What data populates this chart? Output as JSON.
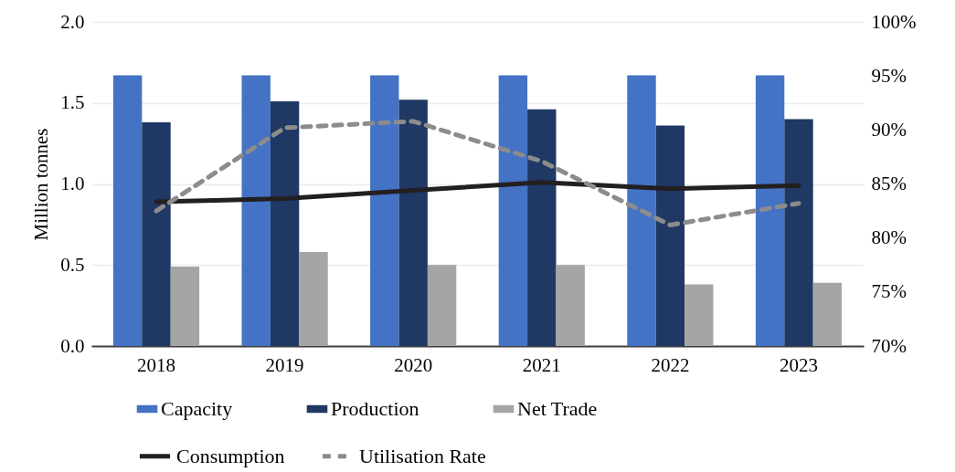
{
  "chart_data": {
    "type": "bar",
    "ylabel": "Million tonnes",
    "categories": [
      "2018",
      "2019",
      "2020",
      "2021",
      "2022",
      "2023"
    ],
    "series": [
      {
        "name": "Capacity",
        "color": "#4472c4",
        "values": [
          1.67,
          1.67,
          1.67,
          1.67,
          1.67,
          1.67
        ]
      },
      {
        "name": "Production",
        "color": "#1f3864",
        "values": [
          1.38,
          1.51,
          1.52,
          1.46,
          1.36,
          1.4
        ]
      },
      {
        "name": "Net Trade",
        "color": "#a5a5a5",
        "values": [
          0.49,
          0.58,
          0.5,
          0.5,
          0.38,
          0.39
        ]
      },
      {
        "name": "Consumption",
        "type": "line",
        "color": "#231f20",
        "line_style": "solid",
        "values": [
          0.89,
          0.91,
          0.96,
          1.01,
          0.97,
          0.99
        ]
      },
      {
        "name": "Utilisation Rate",
        "type": "line",
        "axis": "y2",
        "color": "#8c8c8c",
        "line_style": "dashed",
        "values": [
          82.5,
          90.2,
          90.8,
          87.1,
          81.2,
          83.2
        ]
      }
    ],
    "ylim": [
      0,
      2
    ],
    "yticks": [
      {
        "value": 0,
        "label": "0.0"
      },
      {
        "value": 0.5,
        "label": "0.5"
      },
      {
        "value": 1,
        "label": "1.0"
      },
      {
        "value": 1.5,
        "label": "1.5"
      },
      {
        "value": 2,
        "label": "2.0"
      }
    ],
    "y2lim": [
      70,
      100
    ],
    "y2ticks": [
      {
        "value": 70,
        "label": "70%"
      },
      {
        "value": 75,
        "label": "75%"
      },
      {
        "value": 80,
        "label": "80%"
      },
      {
        "value": 85,
        "label": "85%"
      },
      {
        "value": 90,
        "label": "90%"
      },
      {
        "value": 95,
        "label": "95%"
      },
      {
        "value": 100,
        "label": "100%"
      }
    ],
    "grid": "y",
    "legend": "bottom",
    "marker": "none"
  }
}
